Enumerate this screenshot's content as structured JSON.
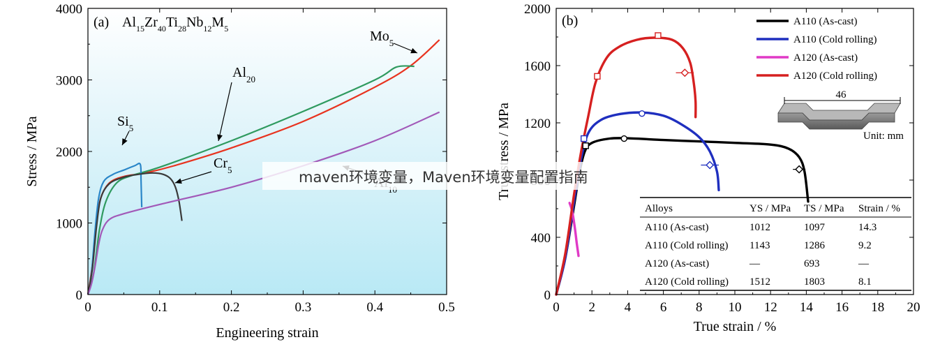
{
  "banner": {
    "text": "maven环境变量，Maven环境变量配置指南"
  },
  "chart_data": [
    {
      "type": "line",
      "panel": "(a)",
      "title_main": "Al",
      "title_parts": [
        [
          "Al",
          ""
        ],
        [
          "15",
          "sub"
        ],
        [
          "Zr",
          ""
        ],
        [
          "40",
          "sub"
        ],
        [
          "Ti",
          ""
        ],
        [
          "28",
          "sub"
        ],
        [
          "Nb",
          ""
        ],
        [
          "12",
          "sub"
        ],
        [
          "M",
          ""
        ],
        [
          "5",
          "sub"
        ]
      ],
      "xlabel": "Engineering strain",
      "ylabel": "Stress / MPa",
      "xlim": [
        0,
        0.5
      ],
      "ylim": [
        0,
        4000
      ],
      "xticks": [
        "0",
        "0.1",
        "0.2",
        "0.3",
        "0.4",
        "0.5"
      ],
      "yticks": [
        "0",
        "1000",
        "2000",
        "3000",
        "4000"
      ],
      "series": [
        {
          "name": "Mo5",
          "base": "Mo",
          "sub": "5",
          "color": "#e8331f",
          "points": [
            [
              0,
              0
            ],
            [
              0.006,
              400
            ],
            [
              0.012,
              1000
            ],
            [
              0.018,
              1350
            ],
            [
              0.03,
              1560
            ],
            [
              0.05,
              1650
            ],
            [
              0.08,
              1700
            ],
            [
              0.12,
              1800
            ],
            [
              0.2,
              2050
            ],
            [
              0.3,
              2420
            ],
            [
              0.4,
              2900
            ],
            [
              0.45,
              3200
            ],
            [
              0.49,
              3560
            ]
          ]
        },
        {
          "name": "Al20",
          "base": "Al",
          "sub": "20",
          "color": "#2f9a5f",
          "points": [
            [
              0,
              0
            ],
            [
              0.008,
              300
            ],
            [
              0.016,
              900
            ],
            [
              0.025,
              1300
            ],
            [
              0.04,
              1560
            ],
            [
              0.06,
              1660
            ],
            [
              0.1,
              1780
            ],
            [
              0.2,
              2150
            ],
            [
              0.3,
              2560
            ],
            [
              0.4,
              3000
            ],
            [
              0.43,
              3180
            ],
            [
              0.455,
              3190
            ]
          ]
        },
        {
          "name": "Si5",
          "base": "Si",
          "sub": "5",
          "color": "#2a86c8",
          "points": [
            [
              0,
              0
            ],
            [
              0.005,
              300
            ],
            [
              0.01,
              900
            ],
            [
              0.015,
              1350
            ],
            [
              0.022,
              1580
            ],
            [
              0.035,
              1680
            ],
            [
              0.05,
              1740
            ],
            [
              0.065,
              1800
            ],
            [
              0.073,
              1820
            ],
            [
              0.074,
              1600
            ],
            [
              0.075,
              1220
            ]
          ]
        },
        {
          "name": "Cr5",
          "base": "Cr",
          "sub": "5",
          "color": "#3a3a3a",
          "points": [
            [
              0,
              0
            ],
            [
              0.006,
              350
            ],
            [
              0.012,
              950
            ],
            [
              0.018,
              1350
            ],
            [
              0.03,
              1550
            ],
            [
              0.05,
              1640
            ],
            [
              0.07,
              1680
            ],
            [
              0.09,
              1700
            ],
            [
              0.105,
              1680
            ],
            [
              0.115,
              1620
            ],
            [
              0.122,
              1500
            ],
            [
              0.127,
              1300
            ],
            [
              0.131,
              1030
            ]
          ]
        },
        {
          "name": "Al10",
          "base": "Al",
          "sub": "10",
          "color": "#a259b8",
          "points": [
            [
              0,
              0
            ],
            [
              0.005,
              150
            ],
            [
              0.01,
              400
            ],
            [
              0.015,
              700
            ],
            [
              0.02,
              900
            ],
            [
              0.03,
              1050
            ],
            [
              0.05,
              1130
            ],
            [
              0.1,
              1260
            ],
            [
              0.2,
              1500
            ],
            [
              0.3,
              1800
            ],
            [
              0.4,
              2150
            ],
            [
              0.49,
              2550
            ]
          ]
        }
      ]
    },
    {
      "type": "line",
      "panel": "(b)",
      "xlabel": "True strain / %",
      "ylabel": "True stress / MPa",
      "xlim": [
        0,
        20
      ],
      "ylim": [
        0,
        2000
      ],
      "xticks": [
        "0",
        "2",
        "4",
        "6",
        "8",
        "10",
        "12",
        "14",
        "16",
        "18",
        "20"
      ],
      "yticks": [
        "0",
        "400",
        "800",
        "1200",
        "1600",
        "2000"
      ],
      "series": [
        {
          "name": "A110 (As-cast)",
          "color": "#000000",
          "points": [
            [
              0,
              0
            ],
            [
              0.5,
              250
            ],
            [
              1.0,
              620
            ],
            [
              1.3,
              850
            ],
            [
              1.6,
              1000
            ],
            [
              2.0,
              1060
            ],
            [
              3.0,
              1090
            ],
            [
              4.0,
              1092
            ],
            [
              6,
              1080
            ],
            [
              8,
              1070
            ],
            [
              10,
              1060
            ],
            [
              12,
              1048
            ],
            [
              13,
              1020
            ],
            [
              13.6,
              960
            ],
            [
              13.9,
              860
            ],
            [
              14.1,
              650
            ]
          ]
        },
        {
          "name": "A110 (Cold rolling)",
          "color": "#1f2fbf",
          "points": [
            [
              0,
              0
            ],
            [
              0.5,
              250
            ],
            [
              1.0,
              650
            ],
            [
              1.4,
              950
            ],
            [
              1.8,
              1130
            ],
            [
              2.5,
              1220
            ],
            [
              3.5,
              1260
            ],
            [
              4.8,
              1272
            ],
            [
              6,
              1250
            ],
            [
              7,
              1190
            ],
            [
              8,
              1100
            ],
            [
              8.6,
              1000
            ],
            [
              9.0,
              860
            ],
            [
              9.1,
              730
            ]
          ]
        },
        {
          "name": "A120 (As-cast)",
          "color": "#e03ac6",
          "points": [
            [
              0.75,
              640
            ],
            [
              0.9,
              580
            ],
            [
              1.05,
              460
            ],
            [
              1.15,
              360
            ],
            [
              1.25,
              270
            ]
          ]
        },
        {
          "name": "A120 (Cold rolling)",
          "color": "#d62020",
          "points": [
            [
              0,
              0
            ],
            [
              0.5,
              280
            ],
            [
              1.0,
              700
            ],
            [
              1.4,
              1000
            ],
            [
              1.8,
              1250
            ],
            [
              2.2,
              1480
            ],
            [
              2.8,
              1650
            ],
            [
              3.5,
              1730
            ],
            [
              4.5,
              1780
            ],
            [
              5.5,
              1795
            ],
            [
              6.5,
              1780
            ],
            [
              7.1,
              1720
            ],
            [
              7.5,
              1620
            ],
            [
              7.7,
              1480
            ],
            [
              7.8,
              1350
            ],
            [
              7.8,
              1240
            ]
          ]
        }
      ],
      "table": {
        "headers": [
          "Alloys",
          "YS / MPa",
          "TS / MPa",
          "Strain / %"
        ],
        "rows": [
          [
            "A110 (As-cast)",
            "1012",
            "1097",
            "14.3"
          ],
          [
            "A110 (Cold rolling)",
            "1143",
            "1286",
            "9.2"
          ],
          [
            "A120 (As-cast)",
            "—",
            "693",
            "—"
          ],
          [
            "A120 (Cold rolling)",
            "1512",
            "1803",
            "8.1"
          ]
        ]
      },
      "specimen": {
        "length_label": "46",
        "unit_label": "Unit: mm"
      }
    }
  ]
}
